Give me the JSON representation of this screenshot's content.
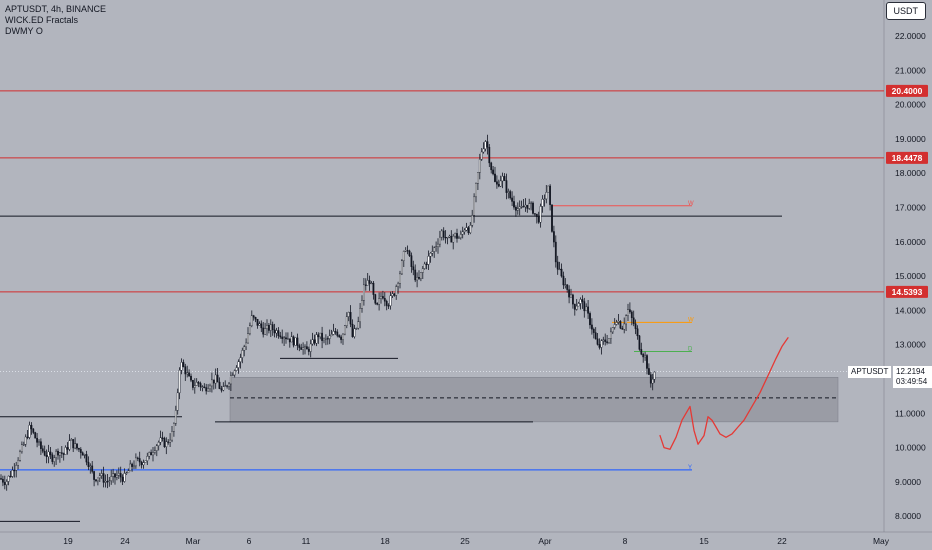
{
  "legend": {
    "title": "APTUSDT, 4h, BINANCE",
    "indicator1": "WICK.ED Fractals",
    "indicator2": "DWMY O"
  },
  "currency": "USDT",
  "ticker": "APTUSDT",
  "current_price": "12.2194",
  "countdown": "03:49:54",
  "colors": {
    "background": "#b2b5be",
    "candle": "#131722",
    "red_line": "#d32f2f",
    "blue_line": "#2962ff",
    "zone": "#9598a1",
    "drawing": "#e53935"
  },
  "chart_data": {
    "type": "candlestick",
    "symbol": "APTUSDT",
    "interval": "4h",
    "exchange": "BINANCE",
    "y_axis": {
      "min": 8.0,
      "max": 22.0,
      "ticks": [
        "22.0000",
        "21.0000",
        "20.0000",
        "19.0000",
        "18.0000",
        "17.0000",
        "16.0000",
        "15.0000",
        "14.0000",
        "13.0000",
        "12.0000",
        "11.0000",
        "10.0000",
        "9.0000",
        "8.0000"
      ]
    },
    "x_axis": {
      "ticks": [
        {
          "label": "19",
          "x": 68
        },
        {
          "label": "24",
          "x": 125
        },
        {
          "label": "Mar",
          "x": 193
        },
        {
          "label": "6",
          "x": 249
        },
        {
          "label": "11",
          "x": 306
        },
        {
          "label": "18",
          "x": 385
        },
        {
          "label": "25",
          "x": 465
        },
        {
          "label": "Apr",
          "x": 545
        },
        {
          "label": "8",
          "x": 625
        },
        {
          "label": "15",
          "x": 704
        },
        {
          "label": "22",
          "x": 782
        },
        {
          "label": "May",
          "x": 881
        }
      ]
    },
    "price_path": [
      [
        0,
        9.1
      ],
      [
        6,
        9.0
      ],
      [
        12,
        9.3
      ],
      [
        18,
        9.7
      ],
      [
        24,
        10.1
      ],
      [
        30,
        10.6
      ],
      [
        35,
        10.3
      ],
      [
        40,
        10.0
      ],
      [
        46,
        9.8
      ],
      [
        52,
        9.7
      ],
      [
        58,
        9.9
      ],
      [
        64,
        9.8
      ],
      [
        70,
        10.2
      ],
      [
        76,
        10.0
      ],
      [
        82,
        9.9
      ],
      [
        88,
        9.6
      ],
      [
        94,
        9.1
      ],
      [
        100,
        9.2
      ],
      [
        106,
        9.0
      ],
      [
        112,
        9.1
      ],
      [
        118,
        9.2
      ],
      [
        124,
        9.1
      ],
      [
        130,
        9.4
      ],
      [
        136,
        9.6
      ],
      [
        142,
        9.6
      ],
      [
        148,
        9.7
      ],
      [
        154,
        10.0
      ],
      [
        160,
        10.2
      ],
      [
        166,
        10.1
      ],
      [
        172,
        10.4
      ],
      [
        176,
        11.0
      ],
      [
        180,
        12.5
      ],
      [
        186,
        12.2
      ],
      [
        192,
        11.8
      ],
      [
        198,
        11.9
      ],
      [
        204,
        11.7
      ],
      [
        210,
        11.9
      ],
      [
        216,
        12.0
      ],
      [
        222,
        11.6
      ],
      [
        228,
        11.9
      ],
      [
        234,
        12.3
      ],
      [
        240,
        12.6
      ],
      [
        246,
        13.1
      ],
      [
        252,
        13.8
      ],
      [
        258,
        13.6
      ],
      [
        264,
        13.4
      ],
      [
        270,
        13.5
      ],
      [
        276,
        13.4
      ],
      [
        282,
        13.3
      ],
      [
        288,
        13.2
      ],
      [
        294,
        13.1
      ],
      [
        300,
        13.0
      ],
      [
        306,
        12.8
      ],
      [
        312,
        13.0
      ],
      [
        318,
        13.3
      ],
      [
        324,
        13.1
      ],
      [
        330,
        13.2
      ],
      [
        336,
        13.4
      ],
      [
        342,
        13.2
      ],
      [
        348,
        14.1
      ],
      [
        352,
        13.2
      ],
      [
        358,
        13.6
      ],
      [
        364,
        14.7
      ],
      [
        370,
        14.9
      ],
      [
        376,
        14.0
      ],
      [
        382,
        14.5
      ],
      [
        388,
        14.2
      ],
      [
        394,
        14.5
      ],
      [
        400,
        15.1
      ],
      [
        406,
        15.9
      ],
      [
        412,
        15.2
      ],
      [
        418,
        14.8
      ],
      [
        424,
        15.3
      ],
      [
        430,
        15.6
      ],
      [
        436,
        15.9
      ],
      [
        442,
        16.3
      ],
      [
        448,
        16.0
      ],
      [
        454,
        16.2
      ],
      [
        460,
        16.1
      ],
      [
        466,
        16.5
      ],
      [
        470,
        16.3
      ],
      [
        476,
        17.6
      ],
      [
        481,
        18.6
      ],
      [
        486,
        19.0
      ],
      [
        490,
        18.3
      ],
      [
        496,
        17.6
      ],
      [
        502,
        17.9
      ],
      [
        508,
        17.4
      ],
      [
        514,
        17.1
      ],
      [
        520,
        16.9
      ],
      [
        526,
        17.1
      ],
      [
        532,
        17.0
      ],
      [
        538,
        16.6
      ],
      [
        543,
        17.2
      ],
      [
        548,
        17.6
      ],
      [
        552,
        16.4
      ],
      [
        556,
        15.4
      ],
      [
        562,
        14.9
      ],
      [
        568,
        14.6
      ],
      [
        574,
        14.1
      ],
      [
        580,
        14.3
      ],
      [
        586,
        14.0
      ],
      [
        592,
        13.5
      ],
      [
        598,
        12.9
      ],
      [
        604,
        13.1
      ],
      [
        610,
        13.2
      ],
      [
        616,
        13.8
      ],
      [
        622,
        13.5
      ],
      [
        628,
        14.0
      ],
      [
        634,
        13.6
      ],
      [
        640,
        12.9
      ],
      [
        646,
        12.6
      ],
      [
        650,
        11.8
      ],
      [
        654,
        12.2
      ],
      [
        656,
        12.22
      ]
    ],
    "levels": [
      {
        "price": 20.4,
        "label": "20.4000",
        "color": "#d32f2f",
        "x_start": 0,
        "x_end": 884,
        "style": "solid",
        "tag": true
      },
      {
        "price": 18.4478,
        "label": "18.4478",
        "color": "#d32f2f",
        "x_start": 0,
        "x_end": 884,
        "style": "solid",
        "tag": true
      },
      {
        "price": 14.5393,
        "label": "14.5393",
        "color": "#d32f2f",
        "x_start": 0,
        "x_end": 884,
        "style": "solid",
        "tag": true
      },
      {
        "price": 16.75,
        "color": "#131722",
        "x_start": 0,
        "x_end": 782,
        "style": "solid"
      },
      {
        "price": 10.9,
        "color": "#131722",
        "x_start": 0,
        "x_end": 182,
        "style": "solid"
      },
      {
        "price": 12.6,
        "color": "#131722",
        "x_start": 280,
        "x_end": 398,
        "style": "solid"
      },
      {
        "price": 10.75,
        "color": "#131722",
        "x_start": 215,
        "x_end": 533,
        "style": "solid"
      },
      {
        "price": 9.35,
        "color": "#2962ff",
        "x_start": 0,
        "x_end": 692,
        "style": "solid"
      },
      {
        "price": 11.45,
        "color": "#131722",
        "x_start": 230,
        "x_end": 836,
        "style": "dashed"
      },
      {
        "price": 12.22,
        "color": "#e0e3eb",
        "x_start": 0,
        "x_end": 884,
        "style": "dotted"
      },
      {
        "price": 7.85,
        "color": "#131722",
        "x_start": 0,
        "x_end": 80,
        "style": "solid"
      },
      {
        "price": 17.05,
        "color": "#ef5350",
        "x_start": 552,
        "x_end": 692,
        "style": "solid",
        "marker": "W"
      },
      {
        "price": 13.65,
        "color": "#ff9800",
        "x_start": 612,
        "x_end": 692,
        "style": "solid",
        "marker": "W"
      },
      {
        "price": 12.8,
        "color": "#4caf50",
        "x_start": 634,
        "x_end": 692,
        "style": "solid",
        "marker": "D"
      },
      {
        "price": 9.35,
        "color": "#2962ff",
        "x_start": 0,
        "x_end": 692,
        "style": "solid",
        "marker": "Y"
      }
    ],
    "zone": {
      "top": 12.05,
      "bottom": 10.75,
      "x_start": 230,
      "x_end": 838,
      "color": "#9598a1"
    },
    "projection": [
      [
        660,
        10.35
      ],
      [
        664,
        10.0
      ],
      [
        670,
        9.95
      ],
      [
        676,
        10.3
      ],
      [
        682,
        10.8
      ],
      [
        690,
        11.2
      ],
      [
        694,
        10.5
      ],
      [
        698,
        10.1
      ],
      [
        704,
        10.35
      ],
      [
        708,
        10.9
      ],
      [
        712,
        10.8
      ],
      [
        716,
        10.6
      ],
      [
        720,
        10.4
      ],
      [
        726,
        10.3
      ],
      [
        732,
        10.4
      ],
      [
        738,
        10.6
      ],
      [
        744,
        10.8
      ],
      [
        752,
        11.2
      ],
      [
        760,
        11.6
      ],
      [
        768,
        12.1
      ],
      [
        776,
        12.6
      ],
      [
        782,
        12.95
      ],
      [
        788,
        13.2
      ]
    ]
  }
}
